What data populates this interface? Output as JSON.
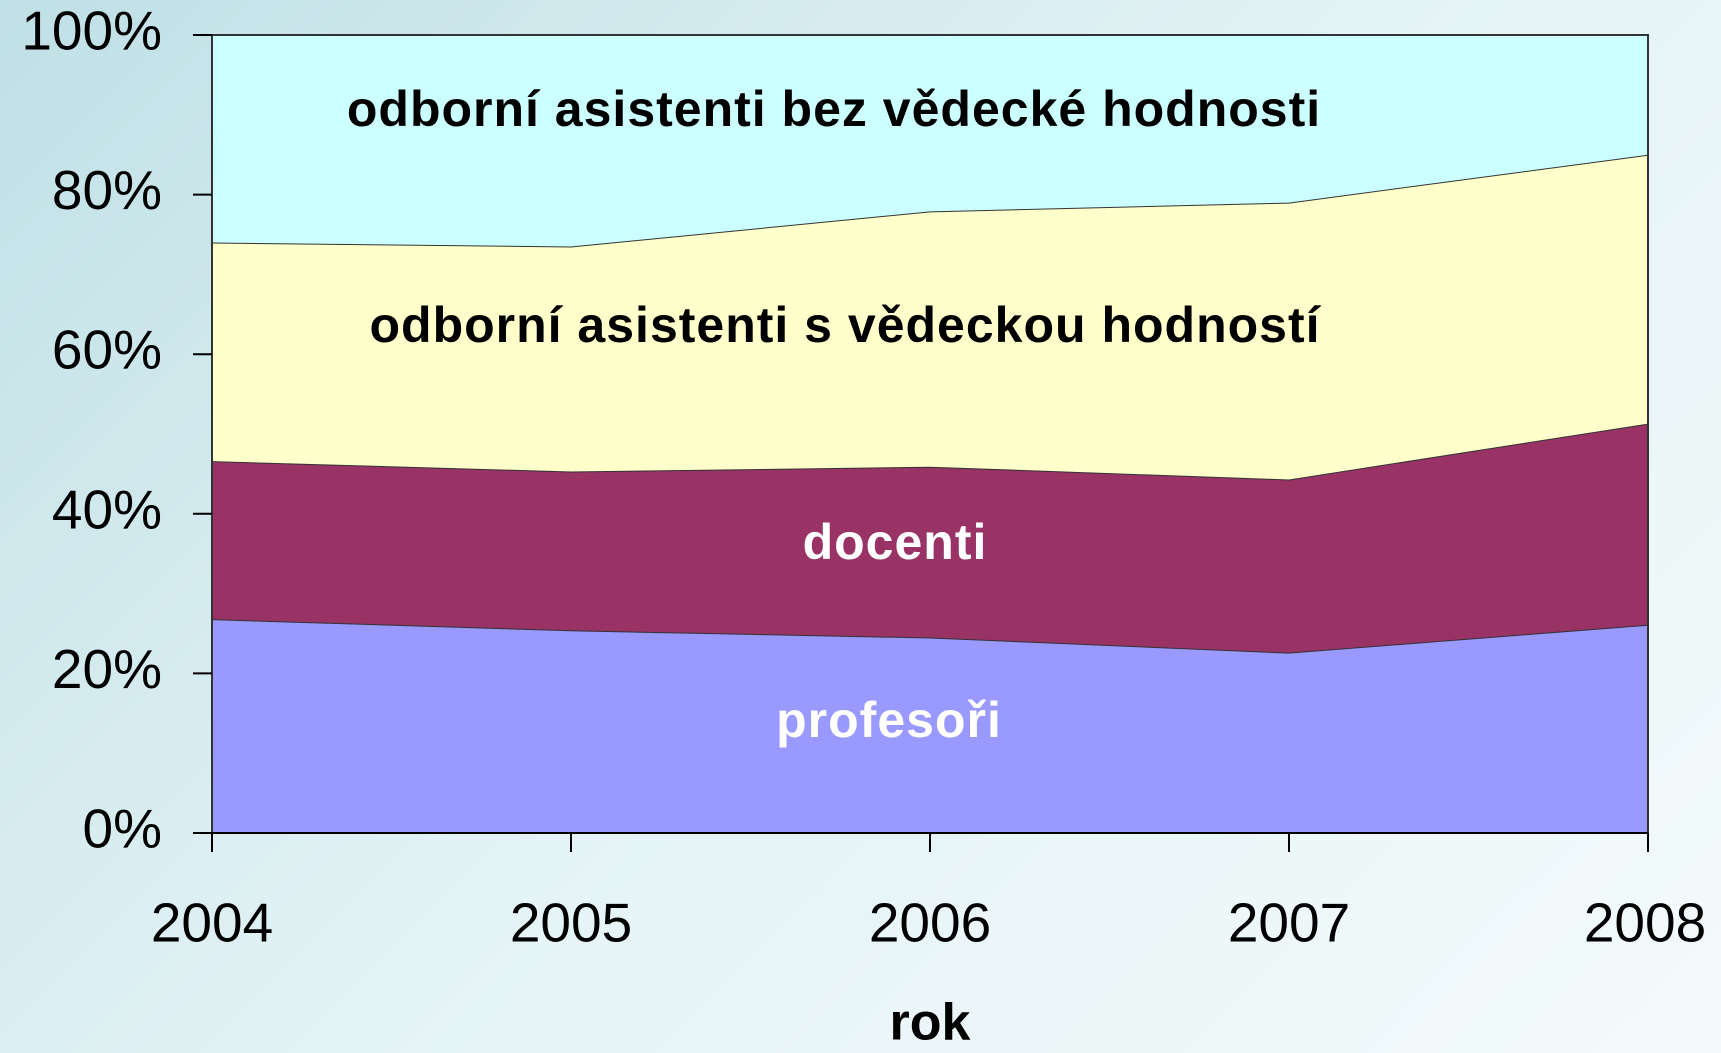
{
  "chart_data": {
    "type": "area",
    "stacked": true,
    "x_label": "rok",
    "categories": [
      "2004",
      "2005",
      "2006",
      "2007",
      "2008"
    ],
    "series": [
      {
        "name": "profesoři",
        "color": "#9999ff",
        "values": [
          26.8,
          25.4,
          24.5,
          22.6,
          26.1
        ]
      },
      {
        "name": "docenti",
        "color": "#993366",
        "values": [
          19.8,
          19.9,
          21.4,
          21.7,
          25.2
        ]
      },
      {
        "name": "odborní asistenti s vědeckou hodností",
        "color": "#ffffcc",
        "values": [
          27.4,
          28.2,
          32.0,
          34.7,
          33.7
        ]
      },
      {
        "name": "odborní asistenti bez vědecké hodnosti",
        "color": "#ccffff",
        "values": [
          26.0,
          26.5,
          22.1,
          21.0,
          15.0
        ]
      }
    ],
    "ylim": [
      0,
      100
    ],
    "yticks": [
      {
        "value": 0,
        "label": "0%"
      },
      {
        "value": 20,
        "label": "20%"
      },
      {
        "value": 40,
        "label": "40%"
      },
      {
        "value": 60,
        "label": "60%"
      },
      {
        "value": 80,
        "label": "80%"
      },
      {
        "value": 100,
        "label": "100%"
      }
    ],
    "grid": false
  }
}
